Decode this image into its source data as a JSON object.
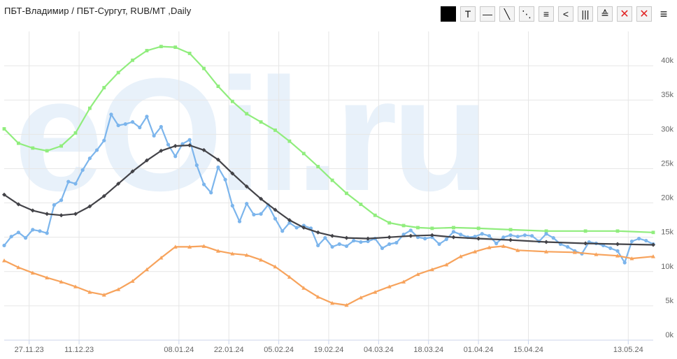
{
  "header": {
    "title": "ПБТ-Владимир / ПБТ-Сургут, RUB/MT ,Daily"
  },
  "watermark_text": "eOil.ru",
  "toolbar": {
    "buttons": [
      {
        "name": "color-black-button",
        "icon": "square-fill",
        "glyph": ""
      },
      {
        "name": "text-tool-button",
        "icon": "text-tool-icon",
        "glyph": "T"
      },
      {
        "name": "horizontal-line-button",
        "icon": "horizontal-line-icon",
        "glyph": "—"
      },
      {
        "name": "trend-line-button",
        "icon": "diagonal-line-icon",
        "glyph": "╲"
      },
      {
        "name": "parallel-lines-button",
        "icon": "parallel-diagonal-icon",
        "glyph": "⋱"
      },
      {
        "name": "horizontal-lines-button",
        "icon": "three-lines-icon",
        "glyph": "≡"
      },
      {
        "name": "fan-lines-button",
        "icon": "fan-icon",
        "glyph": "<"
      },
      {
        "name": "vertical-lines-button",
        "icon": "vertical-lines-icon",
        "glyph": "|||"
      },
      {
        "name": "fibonacci-button",
        "icon": "fibonacci-icon",
        "glyph": "≙"
      },
      {
        "name": "delete-selected-button",
        "icon": "small-x-icon",
        "glyph": "✕"
      },
      {
        "name": "delete-all-button",
        "icon": "big-x-icon",
        "glyph": "✕"
      }
    ],
    "menu_glyph": "≡"
  },
  "colors": {
    "blue": "#7cb5ec",
    "green": "#90ed7d",
    "black": "#434348",
    "orange": "#f7a35c",
    "grid": "#e6e6e6",
    "watermark": "#d6e6f6"
  },
  "chart_data": {
    "type": "line",
    "x_start": "2023-11-20",
    "x_end": "2024-05-20",
    "x_ticks": [
      "27.11.23",
      "11.12.23",
      "08.01.24",
      "22.01.24",
      "05.02.24",
      "19.02.24",
      "04.03.24",
      "18.03.24",
      "01.04.24",
      "15.04.24",
      "13.05.24"
    ],
    "x_tick_dates": [
      "2023-11-27",
      "2023-12-11",
      "2024-01-08",
      "2024-01-22",
      "2024-02-05",
      "2024-02-19",
      "2024-03-04",
      "2024-03-18",
      "2024-04-01",
      "2024-04-15",
      "2024-05-13"
    ],
    "y_range": [
      0,
      45000
    ],
    "y_ticks": [
      0,
      5000,
      10000,
      15000,
      20000,
      25000,
      30000,
      35000,
      40000
    ],
    "y_tick_labels": [
      "0k",
      "5k",
      "10k",
      "15k",
      "20k",
      "25k",
      "30k",
      "35k",
      "40k"
    ],
    "y_axis_side": "right",
    "grid": true,
    "legend": "none",
    "series": [
      {
        "color": "#90ed7d",
        "marker": "square",
        "points": [
          [
            "2023-11-20",
            30800
          ],
          [
            "2023-11-24",
            28700
          ],
          [
            "2023-11-28",
            28000
          ],
          [
            "2023-12-02",
            27600
          ],
          [
            "2023-12-06",
            28300
          ],
          [
            "2023-12-10",
            30200
          ],
          [
            "2023-12-14",
            33800
          ],
          [
            "2023-12-18",
            36800
          ],
          [
            "2023-12-22",
            39000
          ],
          [
            "2023-12-26",
            40800
          ],
          [
            "2023-12-30",
            42200
          ],
          [
            "2024-01-03",
            42800
          ],
          [
            "2024-01-07",
            42700
          ],
          [
            "2024-01-11",
            41800
          ],
          [
            "2024-01-15",
            39600
          ],
          [
            "2024-01-19",
            37000
          ],
          [
            "2024-01-23",
            34800
          ],
          [
            "2024-01-27",
            33000
          ],
          [
            "2024-01-31",
            31800
          ],
          [
            "2024-02-04",
            30600
          ],
          [
            "2024-02-08",
            29000
          ],
          [
            "2024-02-12",
            27200
          ],
          [
            "2024-02-16",
            25300
          ],
          [
            "2024-02-20",
            23300
          ],
          [
            "2024-02-24",
            21400
          ],
          [
            "2024-02-28",
            19800
          ],
          [
            "2024-03-03",
            18200
          ],
          [
            "2024-03-07",
            17100
          ],
          [
            "2024-03-11",
            16700
          ],
          [
            "2024-03-15",
            16400
          ],
          [
            "2024-03-19",
            16300
          ],
          [
            "2024-03-25",
            16400
          ],
          [
            "2024-04-01",
            16300
          ],
          [
            "2024-04-10",
            16100
          ],
          [
            "2024-04-20",
            15900
          ],
          [
            "2024-05-01",
            15900
          ],
          [
            "2024-05-10",
            15900
          ],
          [
            "2024-05-20",
            15700
          ]
        ]
      },
      {
        "color": "#7cb5ec",
        "marker": "circle",
        "points": [
          [
            "2023-11-20",
            13800
          ],
          [
            "2023-11-22",
            15100
          ],
          [
            "2023-11-24",
            15700
          ],
          [
            "2023-11-26",
            14900
          ],
          [
            "2023-11-28",
            16100
          ],
          [
            "2023-11-30",
            15900
          ],
          [
            "2023-12-02",
            15600
          ],
          [
            "2023-12-04",
            19700
          ],
          [
            "2023-12-06",
            20400
          ],
          [
            "2023-12-08",
            23100
          ],
          [
            "2023-12-10",
            22800
          ],
          [
            "2023-12-12",
            24800
          ],
          [
            "2023-12-14",
            26500
          ],
          [
            "2023-12-16",
            27700
          ],
          [
            "2023-12-18",
            29100
          ],
          [
            "2023-12-20",
            32900
          ],
          [
            "2023-12-22",
            31300
          ],
          [
            "2023-12-24",
            31500
          ],
          [
            "2023-12-26",
            31800
          ],
          [
            "2023-12-28",
            31000
          ],
          [
            "2023-12-30",
            32600
          ],
          [
            "2024-01-01",
            29800
          ],
          [
            "2024-01-03",
            31100
          ],
          [
            "2024-01-05",
            28500
          ],
          [
            "2024-01-07",
            26800
          ],
          [
            "2024-01-09",
            28600
          ],
          [
            "2024-01-11",
            29200
          ],
          [
            "2024-01-13",
            25500
          ],
          [
            "2024-01-15",
            22700
          ],
          [
            "2024-01-17",
            21500
          ],
          [
            "2024-01-19",
            25200
          ],
          [
            "2024-01-21",
            23400
          ],
          [
            "2024-01-23",
            19600
          ],
          [
            "2024-01-25",
            17300
          ],
          [
            "2024-01-27",
            19900
          ],
          [
            "2024-01-29",
            18300
          ],
          [
            "2024-01-31",
            18400
          ],
          [
            "2024-02-02",
            19700
          ],
          [
            "2024-02-04",
            17700
          ],
          [
            "2024-02-06",
            15900
          ],
          [
            "2024-02-08",
            17100
          ],
          [
            "2024-02-10",
            16400
          ],
          [
            "2024-02-12",
            16700
          ],
          [
            "2024-02-14",
            16300
          ],
          [
            "2024-02-16",
            13800
          ],
          [
            "2024-02-18",
            14900
          ],
          [
            "2024-02-20",
            13600
          ],
          [
            "2024-02-22",
            14000
          ],
          [
            "2024-02-24",
            13700
          ],
          [
            "2024-02-26",
            14500
          ],
          [
            "2024-02-28",
            14300
          ],
          [
            "2024-03-01",
            14400
          ],
          [
            "2024-03-03",
            14800
          ],
          [
            "2024-03-05",
            13400
          ],
          [
            "2024-03-07",
            14000
          ],
          [
            "2024-03-09",
            14200
          ],
          [
            "2024-03-11",
            15400
          ],
          [
            "2024-03-13",
            16000
          ],
          [
            "2024-03-15",
            15000
          ],
          [
            "2024-03-17",
            14800
          ],
          [
            "2024-03-19",
            15000
          ],
          [
            "2024-03-21",
            14000
          ],
          [
            "2024-03-23",
            14700
          ],
          [
            "2024-03-25",
            15800
          ],
          [
            "2024-03-27",
            15400
          ],
          [
            "2024-03-29",
            15000
          ],
          [
            "2024-03-31",
            15100
          ],
          [
            "2024-04-02",
            15500
          ],
          [
            "2024-04-04",
            15200
          ],
          [
            "2024-04-06",
            14100
          ],
          [
            "2024-04-08",
            15000
          ],
          [
            "2024-04-10",
            15300
          ],
          [
            "2024-04-12",
            15100
          ],
          [
            "2024-04-14",
            15300
          ],
          [
            "2024-04-16",
            15200
          ],
          [
            "2024-04-18",
            14400
          ],
          [
            "2024-04-20",
            15500
          ],
          [
            "2024-04-22",
            14900
          ],
          [
            "2024-04-24",
            14000
          ],
          [
            "2024-04-26",
            13600
          ],
          [
            "2024-04-28",
            13000
          ],
          [
            "2024-04-30",
            12600
          ],
          [
            "2024-05-02",
            14300
          ],
          [
            "2024-05-04",
            14100
          ],
          [
            "2024-05-06",
            13800
          ],
          [
            "2024-05-08",
            13400
          ],
          [
            "2024-05-10",
            13000
          ],
          [
            "2024-05-12",
            11300
          ],
          [
            "2024-05-14",
            14400
          ],
          [
            "2024-05-16",
            14800
          ],
          [
            "2024-05-18",
            14500
          ],
          [
            "2024-05-20",
            14000
          ]
        ]
      },
      {
        "color": "#434348",
        "marker": "diamond",
        "points": [
          [
            "2023-11-20",
            21200
          ],
          [
            "2023-11-24",
            19800
          ],
          [
            "2023-11-28",
            18900
          ],
          [
            "2023-12-02",
            18400
          ],
          [
            "2023-12-06",
            18200
          ],
          [
            "2023-12-10",
            18400
          ],
          [
            "2023-12-14",
            19500
          ],
          [
            "2023-12-18",
            21000
          ],
          [
            "2023-12-22",
            22800
          ],
          [
            "2023-12-26",
            24600
          ],
          [
            "2023-12-30",
            26200
          ],
          [
            "2024-01-03",
            27600
          ],
          [
            "2024-01-07",
            28300
          ],
          [
            "2024-01-11",
            28400
          ],
          [
            "2024-01-15",
            27700
          ],
          [
            "2024-01-19",
            26300
          ],
          [
            "2024-01-23",
            24300
          ],
          [
            "2024-01-27",
            22400
          ],
          [
            "2024-01-31",
            20600
          ],
          [
            "2024-02-04",
            19000
          ],
          [
            "2024-02-08",
            17500
          ],
          [
            "2024-02-12",
            16400
          ],
          [
            "2024-02-16",
            15700
          ],
          [
            "2024-02-20",
            15200
          ],
          [
            "2024-02-24",
            14900
          ],
          [
            "2024-03-01",
            14800
          ],
          [
            "2024-03-07",
            15000
          ],
          [
            "2024-03-13",
            15200
          ],
          [
            "2024-03-19",
            15300
          ],
          [
            "2024-03-25",
            15000
          ],
          [
            "2024-04-01",
            14800
          ],
          [
            "2024-04-10",
            14600
          ],
          [
            "2024-04-20",
            14300
          ],
          [
            "2024-05-01",
            14100
          ],
          [
            "2024-05-10",
            14000
          ],
          [
            "2024-05-20",
            13900
          ]
        ]
      },
      {
        "color": "#f7a35c",
        "marker": "triangle",
        "points": [
          [
            "2023-11-20",
            11600
          ],
          [
            "2023-11-24",
            10600
          ],
          [
            "2023-11-28",
            9800
          ],
          [
            "2023-12-02",
            9100
          ],
          [
            "2023-12-06",
            8500
          ],
          [
            "2023-12-10",
            7800
          ],
          [
            "2023-12-14",
            7000
          ],
          [
            "2023-12-18",
            6600
          ],
          [
            "2023-12-22",
            7400
          ],
          [
            "2023-12-26",
            8600
          ],
          [
            "2023-12-30",
            10300
          ],
          [
            "2024-01-03",
            12000
          ],
          [
            "2024-01-07",
            13600
          ],
          [
            "2024-01-11",
            13600
          ],
          [
            "2024-01-15",
            13700
          ],
          [
            "2024-01-19",
            13000
          ],
          [
            "2024-01-23",
            12600
          ],
          [
            "2024-01-27",
            12400
          ],
          [
            "2024-01-31",
            11700
          ],
          [
            "2024-02-04",
            10700
          ],
          [
            "2024-02-08",
            9200
          ],
          [
            "2024-02-12",
            7600
          ],
          [
            "2024-02-16",
            6300
          ],
          [
            "2024-02-20",
            5400
          ],
          [
            "2024-02-24",
            5100
          ],
          [
            "2024-02-28",
            6200
          ],
          [
            "2024-03-03",
            7000
          ],
          [
            "2024-03-07",
            7800
          ],
          [
            "2024-03-11",
            8500
          ],
          [
            "2024-03-15",
            9600
          ],
          [
            "2024-03-19",
            10300
          ],
          [
            "2024-03-23",
            11000
          ],
          [
            "2024-03-27",
            12200
          ],
          [
            "2024-03-31",
            12900
          ],
          [
            "2024-04-04",
            13500
          ],
          [
            "2024-04-08",
            13700
          ],
          [
            "2024-04-12",
            13100
          ],
          [
            "2024-04-20",
            12900
          ],
          [
            "2024-04-28",
            12800
          ],
          [
            "2024-05-04",
            12500
          ],
          [
            "2024-05-10",
            12300
          ],
          [
            "2024-05-14",
            11900
          ],
          [
            "2024-05-20",
            12200
          ]
        ]
      }
    ]
  }
}
